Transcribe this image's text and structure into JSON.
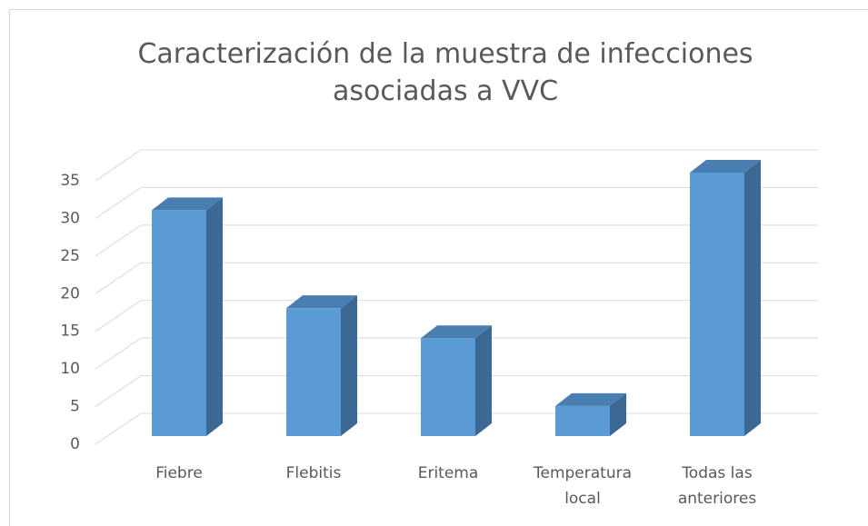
{
  "chart_data": {
    "type": "bar3d",
    "title": "Caracterización de la muestra de infecciones asociadas a VVC",
    "categories": [
      "Fiebre",
      "Flebitis",
      "Eritema",
      "Temperatura local",
      "Todas las anteriores"
    ],
    "values": [
      30,
      17,
      13,
      4,
      35
    ],
    "color": "#5b9bd5",
    "ylim": [
      0,
      35
    ],
    "yticks": [
      0,
      5,
      10,
      15,
      20,
      25,
      30,
      35
    ],
    "grid": true
  }
}
